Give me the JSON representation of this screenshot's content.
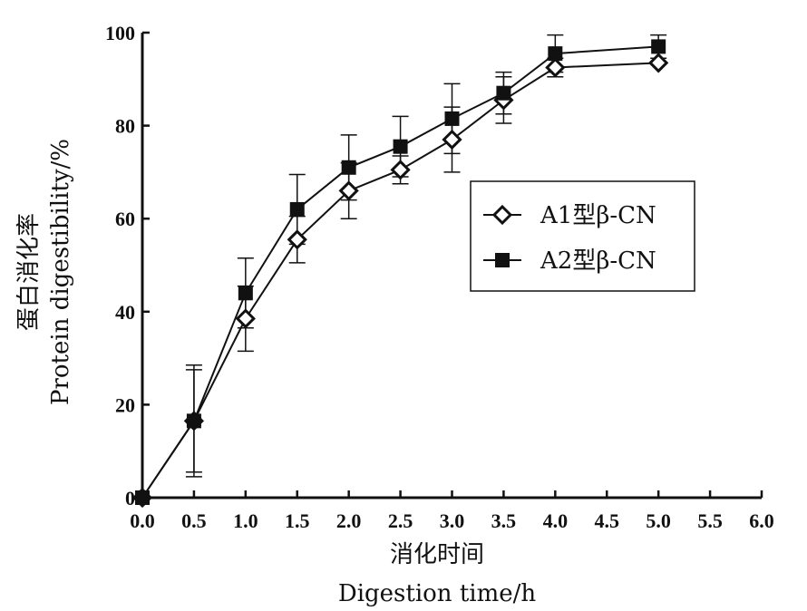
{
  "chart_data": {
    "type": "line",
    "xlabel_cn": "消化时间",
    "xlabel_en": "Digestion time/h",
    "ylabel_cn": "蛋白消化率",
    "ylabel_en": "Protein digestibility/%",
    "xlim": [
      0,
      6
    ],
    "ylim": [
      0,
      100
    ],
    "x_ticks": [
      "0.0",
      "0.5",
      "1.0",
      "1.5",
      "2.0",
      "2.5",
      "3.0",
      "3.5",
      "4.0",
      "4.5",
      "5.0",
      "5.5",
      "6.0"
    ],
    "y_ticks": [
      "0",
      "20",
      "40",
      "60",
      "80",
      "100"
    ],
    "grid": false,
    "legend_position": "center-right",
    "series": [
      {
        "name": "A1型β-CN",
        "marker": "open-diamond",
        "color": "#111111",
        "x": [
          0,
          0.5,
          1.0,
          1.5,
          2.0,
          2.5,
          3.0,
          3.5,
          4.0,
          5.0
        ],
        "y": [
          0,
          16.5,
          38.5,
          55.5,
          66,
          70.5,
          77,
          85.5,
          92.5,
          93.5
        ],
        "err": [
          0,
          11,
          7,
          5,
          6,
          3,
          7,
          5,
          2,
          0
        ]
      },
      {
        "name": "A2型β-CN",
        "marker": "filled-square",
        "color": "#111111",
        "x": [
          0,
          0.5,
          1.0,
          1.5,
          2.0,
          2.5,
          3.0,
          3.5,
          4.0,
          5.0
        ],
        "y": [
          0,
          16.5,
          44,
          62,
          71,
          75.5,
          81.5,
          87,
          95.5,
          97
        ],
        "err": [
          0,
          12,
          7.5,
          7.5,
          7,
          6.5,
          7.5,
          4.5,
          4,
          2.5
        ]
      }
    ]
  }
}
